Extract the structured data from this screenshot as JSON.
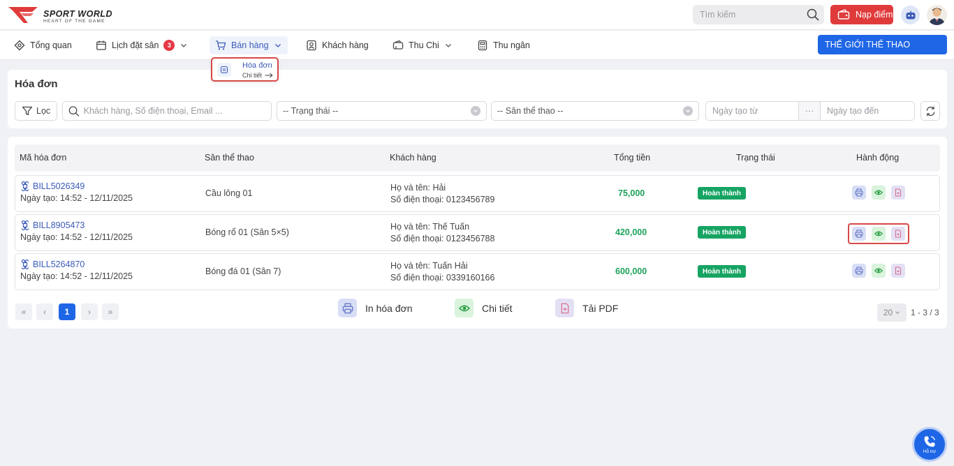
{
  "brand": {
    "title": "SPORT WORLD",
    "tagline": "HEART OF THE GAME",
    "logo_color": "#e03b3b"
  },
  "header": {
    "search_placeholder": "Tìm kiếm",
    "topup_label": "Nạp điểm",
    "bot_icon": "robot-icon",
    "avatar_icon": "user-avatar"
  },
  "nav": {
    "overview": "Tổng quan",
    "schedule": "Lịch đặt sân",
    "schedule_badge": "3",
    "sales": "Bán hàng",
    "customers": "Khách hàng",
    "income_expense": "Thu Chi",
    "cashier": "Thu ngân",
    "store_button": "THẾ GIỚI THỂ THAO"
  },
  "dropdown": {
    "title": "Hóa đơn",
    "subtitle": "Chi tiết"
  },
  "filters": {
    "page_title": "Hóa đơn",
    "filter_button": "Lọc",
    "search_placeholder": "Khách hàng, Số điện thoại, Email ...",
    "status_select": "-- Trạng thái --",
    "venue_select": "-- Sân thể thao --",
    "date_from_placeholder": "Ngày tạo từ",
    "date_separator": "···",
    "date_to_placeholder": "Ngày tạo đến"
  },
  "table": {
    "headers": [
      "Mã hóa đơn",
      "Sân thể thao",
      "Khách hàng",
      "Tổng tiền",
      "Trạng thái",
      "Hành động"
    ],
    "rows": [
      {
        "code": "BILL5026349",
        "created": "Ngày tạo: 14:52 - 12/11/2025",
        "venue": "Cầu lông 01",
        "name": "Họ và tên: Hải",
        "phone": "Số điện thoại: 0123456789",
        "total": "75,000",
        "status": "Hoàn thành"
      },
      {
        "code": "BILL8905473",
        "created": "Ngày tạo: 14:52 - 12/11/2025",
        "venue": "Bóng rổ 01 (Sân 5×5)",
        "name": "Họ và tên: Thế Tuấn",
        "phone": "Số điện thoại: 0123456788",
        "total": "420,000",
        "status": "Hoàn thành"
      },
      {
        "code": "BILL5264870",
        "created": "Ngày tạo: 14:52 - 12/11/2025",
        "venue": "Bóng đá 01 (Sân 7)",
        "name": "Họ và tên: Tuấn Hải",
        "phone": "Số điện thoại: 0339160166",
        "total": "600,000",
        "status": "Hoàn thành"
      }
    ]
  },
  "pagination": {
    "first": "«",
    "prev": "‹",
    "current": "1",
    "next": "›",
    "last": "»",
    "page_size": "20",
    "range": "1 - 3 / 3"
  },
  "legend": {
    "print": "In hóa đơn",
    "detail": "Chi tiết",
    "pdf": "Tải PDF"
  },
  "support": {
    "label": "Hỗ trợ"
  },
  "colors": {
    "primary": "#1f66e6",
    "danger": "#e03b3b",
    "success": "#17a463",
    "link": "#3b5bb8"
  }
}
